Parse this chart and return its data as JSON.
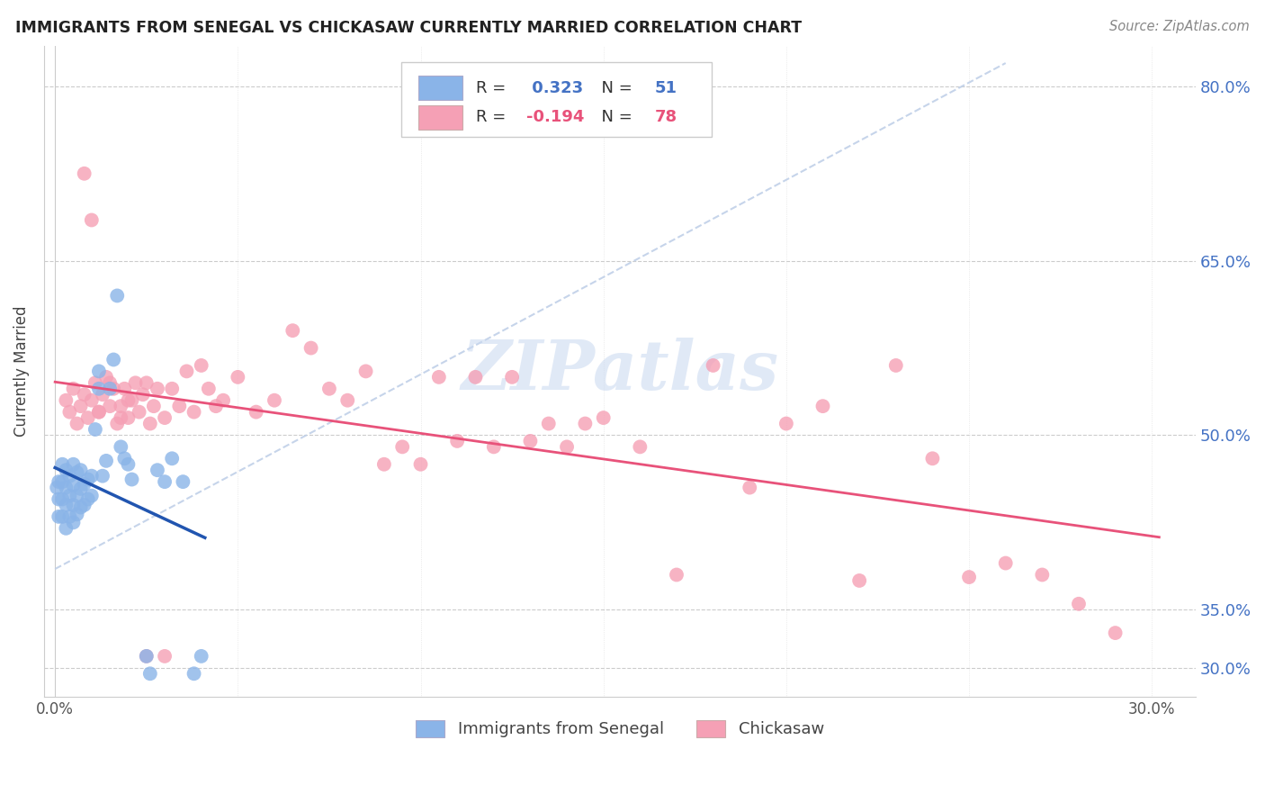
{
  "title": "IMMIGRANTS FROM SENEGAL VS CHICKASAW CURRENTLY MARRIED CORRELATION CHART",
  "source": "Source: ZipAtlas.com",
  "ylabel": "Currently Married",
  "xmin": -0.003,
  "xmax": 0.312,
  "ymin": 0.275,
  "ymax": 0.835,
  "ytick_vals": [
    0.3,
    0.35,
    0.5,
    0.65,
    0.8
  ],
  "ytick_labels": [
    "30.0%",
    "35.0%",
    "50.0%",
    "65.0%",
    "80.0%"
  ],
  "xtick_vals": [
    0.0,
    0.05,
    0.1,
    0.15,
    0.2,
    0.25,
    0.3
  ],
  "xtick_labels": [
    "0.0%",
    "",
    "",
    "",
    "",
    "",
    "30.0%"
  ],
  "blue_R": 0.323,
  "blue_N": 51,
  "pink_R": -0.194,
  "pink_N": 78,
  "blue_label": "Immigrants from Senegal",
  "pink_label": "Chickasaw",
  "blue_color": "#8ab4e8",
  "pink_color": "#f5a0b5",
  "blue_line_color": "#2155b0",
  "pink_line_color": "#e8527a",
  "tick_color": "#4472c4",
  "watermark": "ZIPatlas",
  "blue_x": [
    0.0005,
    0.001,
    0.001,
    0.001,
    0.002,
    0.002,
    0.002,
    0.002,
    0.003,
    0.003,
    0.003,
    0.003,
    0.004,
    0.004,
    0.004,
    0.005,
    0.005,
    0.005,
    0.005,
    0.006,
    0.006,
    0.006,
    0.007,
    0.007,
    0.007,
    0.008,
    0.008,
    0.009,
    0.009,
    0.01,
    0.01,
    0.011,
    0.012,
    0.012,
    0.013,
    0.014,
    0.015,
    0.016,
    0.017,
    0.018,
    0.019,
    0.02,
    0.021,
    0.025,
    0.026,
    0.028,
    0.03,
    0.032,
    0.035,
    0.038,
    0.04
  ],
  "blue_y": [
    0.455,
    0.43,
    0.445,
    0.46,
    0.43,
    0.445,
    0.46,
    0.475,
    0.42,
    0.44,
    0.455,
    0.47,
    0.43,
    0.448,
    0.465,
    0.425,
    0.44,
    0.457,
    0.475,
    0.432,
    0.448,
    0.468,
    0.438,
    0.454,
    0.47,
    0.44,
    0.458,
    0.445,
    0.462,
    0.448,
    0.465,
    0.505,
    0.54,
    0.555,
    0.465,
    0.478,
    0.54,
    0.565,
    0.62,
    0.49,
    0.48,
    0.475,
    0.462,
    0.31,
    0.295,
    0.47,
    0.46,
    0.48,
    0.46,
    0.295,
    0.31
  ],
  "pink_x": [
    0.003,
    0.004,
    0.005,
    0.006,
    0.007,
    0.008,
    0.009,
    0.01,
    0.011,
    0.012,
    0.013,
    0.014,
    0.015,
    0.016,
    0.017,
    0.018,
    0.019,
    0.02,
    0.021,
    0.022,
    0.023,
    0.024,
    0.025,
    0.026,
    0.027,
    0.028,
    0.03,
    0.032,
    0.034,
    0.036,
    0.038,
    0.04,
    0.042,
    0.044,
    0.046,
    0.05,
    0.055,
    0.06,
    0.065,
    0.07,
    0.075,
    0.08,
    0.085,
    0.09,
    0.095,
    0.1,
    0.105,
    0.11,
    0.115,
    0.12,
    0.125,
    0.13,
    0.135,
    0.14,
    0.145,
    0.15,
    0.16,
    0.17,
    0.18,
    0.19,
    0.2,
    0.21,
    0.22,
    0.23,
    0.24,
    0.25,
    0.26,
    0.27,
    0.28,
    0.29,
    0.008,
    0.01,
    0.012,
    0.015,
    0.018,
    0.02,
    0.025,
    0.03
  ],
  "pink_y": [
    0.53,
    0.52,
    0.54,
    0.51,
    0.525,
    0.535,
    0.515,
    0.53,
    0.545,
    0.52,
    0.535,
    0.55,
    0.525,
    0.54,
    0.51,
    0.525,
    0.54,
    0.515,
    0.53,
    0.545,
    0.52,
    0.535,
    0.545,
    0.51,
    0.525,
    0.54,
    0.515,
    0.54,
    0.525,
    0.555,
    0.52,
    0.56,
    0.54,
    0.525,
    0.53,
    0.55,
    0.52,
    0.53,
    0.59,
    0.575,
    0.54,
    0.53,
    0.555,
    0.475,
    0.49,
    0.475,
    0.55,
    0.495,
    0.55,
    0.49,
    0.55,
    0.495,
    0.51,
    0.49,
    0.51,
    0.515,
    0.49,
    0.38,
    0.56,
    0.455,
    0.51,
    0.525,
    0.375,
    0.56,
    0.48,
    0.378,
    0.39,
    0.38,
    0.355,
    0.33,
    0.725,
    0.685,
    0.52,
    0.545,
    0.515,
    0.53,
    0.31,
    0.31
  ]
}
